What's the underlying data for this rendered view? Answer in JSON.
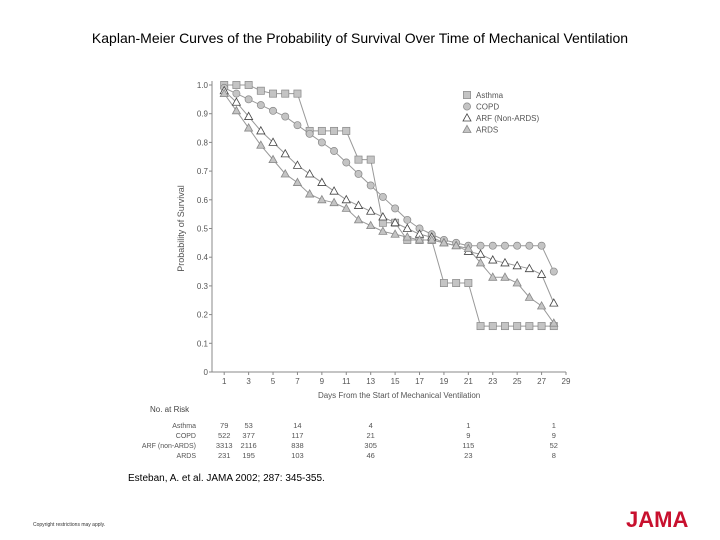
{
  "title": "Kaplan-Meier Curves of the Probability of Survival Over Time of Mechanical Ventilation",
  "citation": "Esteban, A. et al. JAMA 2002; 287: 345-355.",
  "copyright": "Copyright restrictions may apply.",
  "logo": "JAMA",
  "colors": {
    "logo": "#c8102e",
    "marker_fill": "#c4c4c4",
    "marker_stroke": "#888888",
    "line": "#999999"
  },
  "chart_data": {
    "type": "line",
    "title": "Kaplan-Meier Curves of the Probability of Survival Over Time of Mechanical Ventilation",
    "xlabel": "Days From the Start of Mechanical Ventilation",
    "ylabel": "Probability of Survival",
    "xlim": [
      0,
      29
    ],
    "ylim": [
      0,
      1.0
    ],
    "x_ticks": [
      1,
      3,
      5,
      7,
      9,
      11,
      13,
      15,
      17,
      19,
      21,
      23,
      25,
      27,
      29
    ],
    "y_ticks": [
      0,
      0.1,
      0.2,
      0.3,
      0.4,
      0.5,
      0.6,
      0.7,
      0.8,
      0.9,
      1.0
    ],
    "y_tick_labels": [
      "0",
      "0.1",
      "0.2",
      "0.3",
      "0.4",
      "0.5",
      "0.6",
      "0.7",
      "0.8",
      "0.9",
      "1.0"
    ],
    "legend_position": "top-right",
    "series": [
      {
        "name": "Asthma",
        "marker": "square",
        "x": [
          1,
          2,
          3,
          4,
          5,
          6,
          7,
          8,
          9,
          10,
          11,
          12,
          13,
          14,
          15,
          16,
          17,
          18,
          19,
          20,
          21,
          22,
          23,
          24,
          25,
          26,
          27,
          28
        ],
        "y": [
          1.0,
          1.0,
          1.0,
          0.98,
          0.97,
          0.97,
          0.97,
          0.84,
          0.84,
          0.84,
          0.84,
          0.74,
          0.74,
          0.52,
          0.52,
          0.46,
          0.46,
          0.46,
          0.31,
          0.31,
          0.31,
          0.16,
          0.16,
          0.16,
          0.16,
          0.16,
          0.16,
          0.16
        ]
      },
      {
        "name": "COPD",
        "marker": "circle",
        "x": [
          1,
          2,
          3,
          4,
          5,
          6,
          7,
          8,
          9,
          10,
          11,
          12,
          13,
          14,
          15,
          16,
          17,
          18,
          19,
          20,
          21,
          22,
          23,
          24,
          25,
          26,
          27,
          28
        ],
        "y": [
          0.99,
          0.97,
          0.95,
          0.93,
          0.91,
          0.89,
          0.86,
          0.83,
          0.8,
          0.77,
          0.73,
          0.69,
          0.65,
          0.61,
          0.57,
          0.53,
          0.5,
          0.48,
          0.46,
          0.45,
          0.44,
          0.44,
          0.44,
          0.44,
          0.44,
          0.44,
          0.44,
          0.35
        ]
      },
      {
        "name": "ARF (Non-ARDS)",
        "marker": "triangle-open",
        "x": [
          1,
          2,
          3,
          4,
          5,
          6,
          7,
          8,
          9,
          10,
          11,
          12,
          13,
          14,
          15,
          16,
          17,
          18,
          19,
          20,
          21,
          22,
          23,
          24,
          25,
          26,
          27,
          28
        ],
        "y": [
          0.98,
          0.94,
          0.89,
          0.84,
          0.8,
          0.76,
          0.72,
          0.69,
          0.66,
          0.63,
          0.6,
          0.58,
          0.56,
          0.54,
          0.52,
          0.5,
          0.48,
          0.47,
          0.45,
          0.44,
          0.42,
          0.41,
          0.39,
          0.38,
          0.37,
          0.36,
          0.34,
          0.24
        ]
      },
      {
        "name": "ARDS",
        "marker": "triangle-filled",
        "x": [
          1,
          2,
          3,
          4,
          5,
          6,
          7,
          8,
          9,
          10,
          11,
          12,
          13,
          14,
          15,
          16,
          17,
          18,
          19,
          20,
          21,
          22,
          23,
          24,
          25,
          26,
          27,
          28
        ],
        "y": [
          0.97,
          0.91,
          0.85,
          0.79,
          0.74,
          0.69,
          0.66,
          0.62,
          0.6,
          0.59,
          0.57,
          0.53,
          0.51,
          0.49,
          0.48,
          0.47,
          0.46,
          0.46,
          0.45,
          0.44,
          0.43,
          0.38,
          0.33,
          0.33,
          0.31,
          0.26,
          0.23,
          0.17
        ]
      }
    ],
    "risk_table": {
      "header": "No. at Risk",
      "days": [
        1,
        3,
        7,
        13,
        21,
        28
      ],
      "rows": [
        {
          "label": "Asthma",
          "values": [
            "79",
            "53",
            "14",
            "4",
            "1",
            "1"
          ]
        },
        {
          "label": "COPD",
          "values": [
            "522",
            "377",
            "117",
            "21",
            "9",
            "9"
          ]
        },
        {
          "label": "ARF (non-ARDS)",
          "values": [
            "3313",
            "2116",
            "838",
            "305",
            "115",
            "52"
          ]
        },
        {
          "label": "ARDS",
          "values": [
            "231",
            "195",
            "103",
            "46",
            "23",
            "8"
          ]
        }
      ]
    }
  }
}
